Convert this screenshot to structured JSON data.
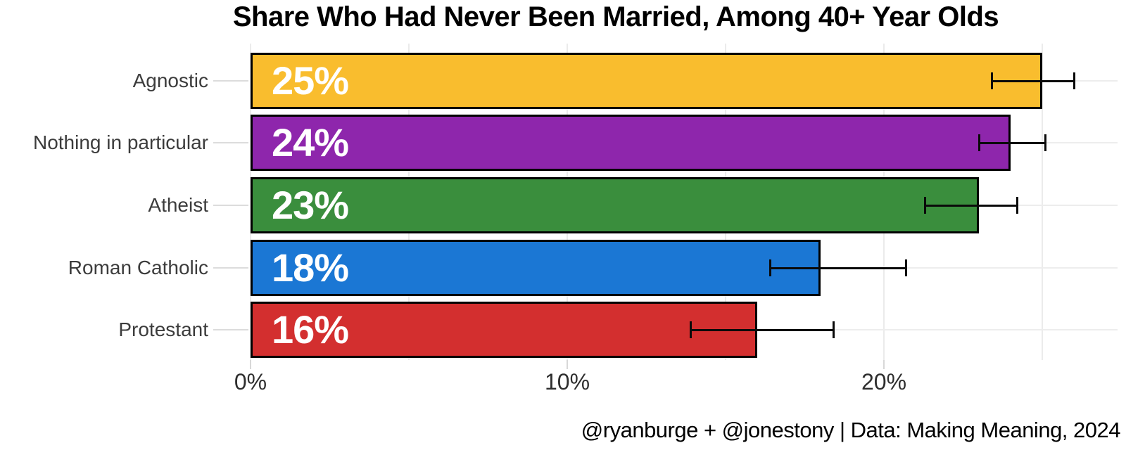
{
  "chart_data": {
    "type": "bar",
    "orientation": "horizontal",
    "title": "Share Who Had Never Been Married, Among 40+ Year Olds",
    "categories": [
      "Agnostic",
      "Nothing in particular",
      "Atheist",
      "Roman Catholic",
      "Protestant"
    ],
    "values": [
      25,
      24,
      23,
      18,
      16
    ],
    "value_labels": [
      "25%",
      "24%",
      "23%",
      "18%",
      "16%"
    ],
    "bar_colors": [
      "#F9BD2E",
      "#8E26AC",
      "#3A8E3D",
      "#1B77D4",
      "#D32F2F"
    ],
    "error_low": [
      23.4,
      23.0,
      21.3,
      16.4,
      13.9
    ],
    "error_high": [
      26.0,
      25.1,
      24.2,
      20.7,
      18.4
    ],
    "x_ticks": [
      {
        "value": 0,
        "label": "0%"
      },
      {
        "value": 10,
        "label": "10%"
      },
      {
        "value": 20,
        "label": "20%"
      }
    ],
    "x_minor_grid_step": 5,
    "xlim": [
      0,
      27.4
    ],
    "grid": true,
    "legend": "none",
    "bar_border_color": "#000000",
    "value_label_color": "#ffffff",
    "source": "@ryanburge + @jonestony | Data: Making Meaning, 2024"
  }
}
